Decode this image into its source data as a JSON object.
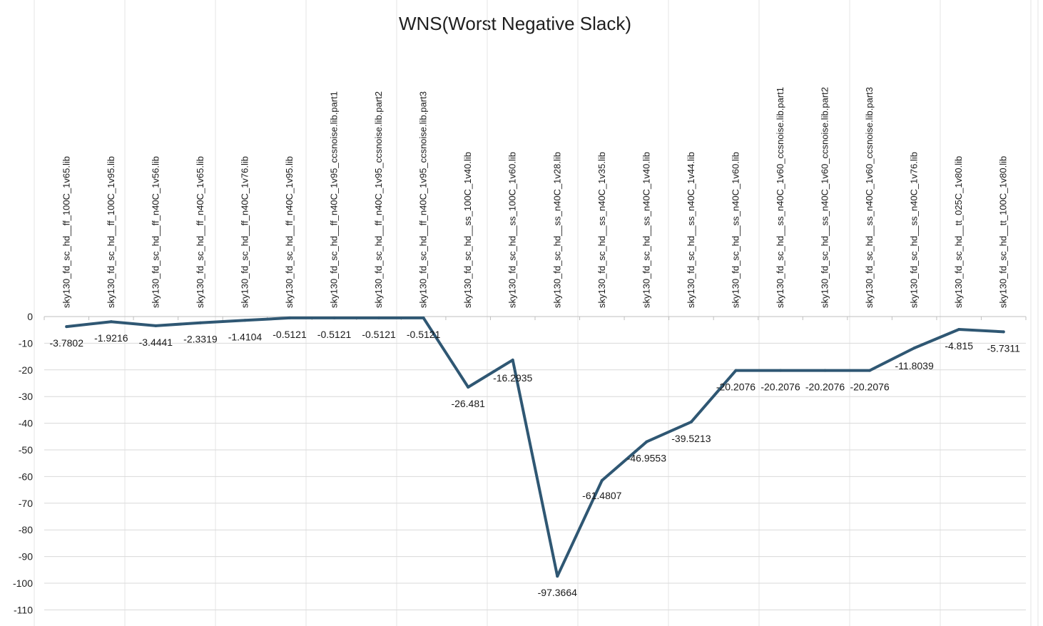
{
  "chart_data": {
    "type": "line",
    "title": "WNS(Worst Negative Slack)",
    "xlabel": "",
    "ylabel": "",
    "ylim": [
      -110,
      0
    ],
    "yticks": [
      0,
      -10,
      -20,
      -30,
      -40,
      -50,
      -60,
      -70,
      -80,
      -90,
      -100,
      -110
    ],
    "grid": true,
    "legend": "none",
    "x_axis_position": "top",
    "categories": [
      "sky130_fd_sc_hd__ff_100C_1v65.lib",
      "sky130_fd_sc_hd__ff_100C_1v95.lib",
      "sky130_fd_sc_hd__ff_n40C_1v56.lib",
      "sky130_fd_sc_hd__ff_n40C_1v65.lib",
      "sky130_fd_sc_hd__ff_n40C_1v76.lib",
      "sky130_fd_sc_hd__ff_n40C_1v95.lib",
      "sky130_fd_sc_hd__ff_n40C_1v95_ccsnoise.lib.part1",
      "sky130_fd_sc_hd__ff_n40C_1v95_ccsnoise.lib.part2",
      "sky130_fd_sc_hd__ff_n40C_1v95_ccsnoise.lib.part3",
      "sky130_fd_sc_hd__ss_100C_1v40.lib",
      "sky130_fd_sc_hd__ss_100C_1v60.lib",
      "sky130_fd_sc_hd__ss_n40C_1v28.lib",
      "sky130_fd_sc_hd__ss_n40C_1v35.lib",
      "sky130_fd_sc_hd__ss_n40C_1v40.lib",
      "sky130_fd_sc_hd__ss_n40C_1v44.lib",
      "sky130_fd_sc_hd__ss_n40C_1v60.lib",
      "sky130_fd_sc_hd__ss_n40C_1v60_ccsnoise.lib.part1",
      "sky130_fd_sc_hd__ss_n40C_1v60_ccsnoise.lib.part2",
      "sky130_fd_sc_hd__ss_n40C_1v60_ccsnoise.lib.part3",
      "sky130_fd_sc_hd__ss_n40C_1v76.lib",
      "sky130_fd_sc_hd__tt_025C_1v80.lib",
      "sky130_fd_sc_hd__tt_100C_1v80.lib"
    ],
    "series": [
      {
        "values": [
          -3.7802,
          -1.9216,
          -3.4441,
          -2.3319,
          -1.4104,
          -0.5121,
          -0.5121,
          -0.5121,
          -0.5121,
          -26.481,
          -16.2935,
          -97.3664,
          -61.4807,
          -46.9553,
          -39.5213,
          -20.2076,
          -20.2076,
          -20.2076,
          -20.2076,
          -11.8039,
          -4.815,
          -5.7311
        ],
        "labels": [
          "-3.7802",
          "-1.9216",
          "-3.4441",
          "-2.3319",
          "-1.4104",
          "-0.5121",
          "-0.5121",
          "-0.5121",
          "-0.5121",
          "-26.481",
          "-16.2935",
          "-97.3664",
          "-61.4807",
          "-46.9553",
          "-39.5213",
          "-20.2076",
          "-20.2076",
          "-20.2076",
          "-20.2076",
          "-11.8039",
          "-4.815",
          "-5.7311"
        ],
        "color": "#2f5773"
      }
    ]
  }
}
